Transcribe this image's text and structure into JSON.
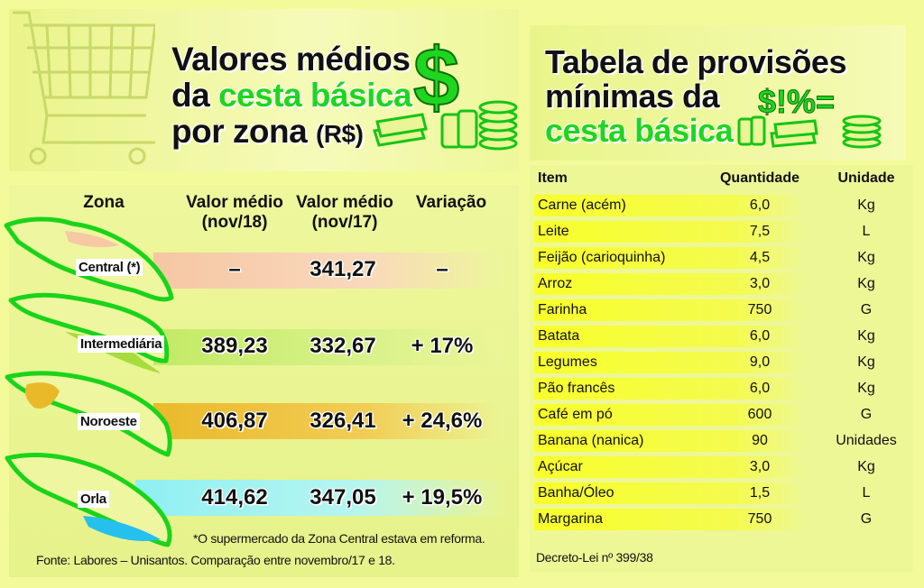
{
  "left": {
    "title_line1": "Valores médios",
    "title_line2_pre": "da ",
    "title_line2_green": "cesta básica",
    "title_line3": "por zona ",
    "title_unit": "(R$)",
    "dollar_symbol": "$",
    "headers": {
      "zona": "Zona",
      "valor_nov18_l1": "Valor médio",
      "valor_nov18_l2": "(nov/18)",
      "valor_nov17_l1": "Valor médio",
      "valor_nov17_l2": "(nov/17)",
      "variacao": "Variação"
    },
    "rows": [
      {
        "zona": "Central (*)",
        "nov18": "–",
        "nov17": "341,27",
        "variacao": "–",
        "color": "#f6c9a4"
      },
      {
        "zona": "Intermediária",
        "nov18": "389,23",
        "nov17": "332,67",
        "variacao": "+ 17%",
        "color": "#c8ec6a"
      },
      {
        "zona": "Noroeste",
        "nov18": "406,87",
        "nov17": "326,41",
        "variacao": "+ 24,6%",
        "color": "#eec033"
      },
      {
        "zona": "Orla",
        "nov18": "414,62",
        "nov17": "347,05",
        "variacao": "+ 19,5%",
        "color": "#a9f2f0"
      }
    ],
    "footnote": "*O supermercado da Zona Central estava em reforma.",
    "source": "Fonte: Labores – Unisantos. Comparação entre novembro/17 e 18."
  },
  "right": {
    "title_line1": "Tabela de provisões",
    "title_line2": "mínimas da",
    "title_line3_green": "cesta básica",
    "symbols": "$!%=",
    "headers": {
      "item": "Item",
      "quantidade": "Quantidade",
      "unidade": "Unidade"
    },
    "rows": [
      {
        "item": "Carne (acém)",
        "quantidade": "6,0",
        "unidade": "Kg"
      },
      {
        "item": "Leite",
        "quantidade": "7,5",
        "unidade": "L"
      },
      {
        "item": "Feijão (carioquinha)",
        "quantidade": "4,5",
        "unidade": "Kg"
      },
      {
        "item": "Arroz",
        "quantidade": "3,0",
        "unidade": "Kg"
      },
      {
        "item": "Farinha",
        "quantidade": "750",
        "unidade": "G"
      },
      {
        "item": "Batata",
        "quantidade": "6,0",
        "unidade": "Kg"
      },
      {
        "item": "Legumes",
        "quantidade": "9,0",
        "unidade": "Kg"
      },
      {
        "item": "Pão francês",
        "quantidade": "6,0",
        "unidade": "Kg"
      },
      {
        "item": "Café em pó",
        "quantidade": "600",
        "unidade": "G"
      },
      {
        "item": "Banana (nanica)",
        "quantidade": "90",
        "unidade": "Unidades"
      },
      {
        "item": "Açúcar",
        "quantidade": "3,0",
        "unidade": "Kg"
      },
      {
        "item": "Banha/Óleo",
        "quantidade": "1,5",
        "unidade": "L"
      },
      {
        "item": "Margarina",
        "quantidade": "750",
        "unidade": "G"
      }
    ],
    "source": "Decreto-Lei nº 399/38"
  }
}
